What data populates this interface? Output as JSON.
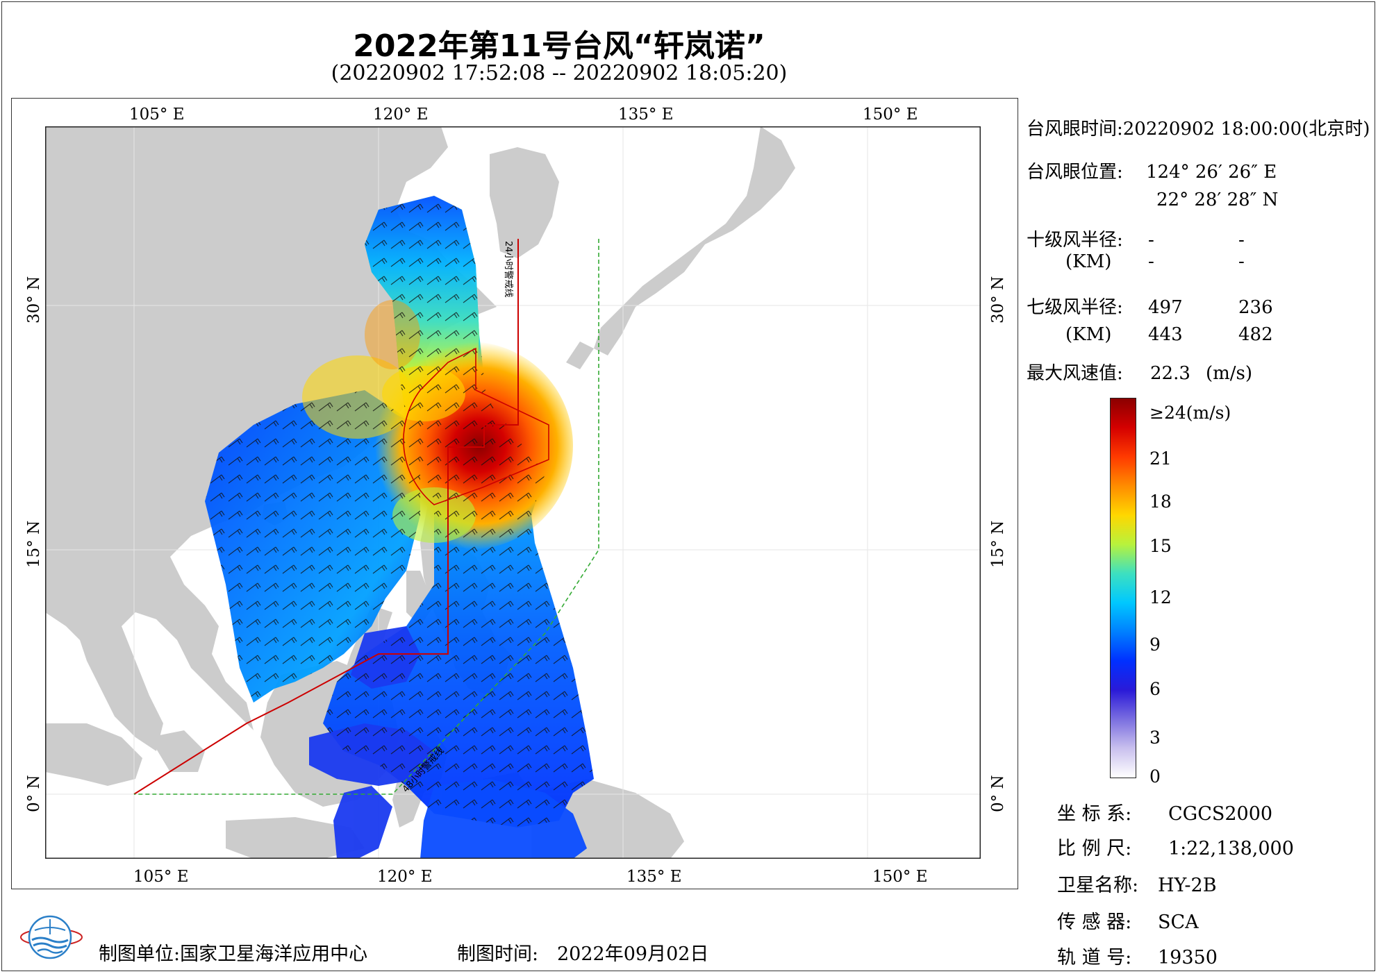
{
  "title": "2022年第11号台风“轩岚诺”",
  "subtitle": "(20220902 17:52:08 -- 20220902 18:05:20)",
  "axes": {
    "lon_ticks": [
      "105° E",
      "120° E",
      "135° E",
      "150° E"
    ],
    "lat_ticks": [
      "30° N",
      "15° N",
      "0° N"
    ]
  },
  "map_labels": {
    "warning_24h": "24小时警戒线",
    "warning_48h": "48小时警戒线"
  },
  "info": {
    "eye_time_label": "台风眼时间:",
    "eye_time_value": "20220902 18:00:00(北京时)",
    "eye_pos_label": "台风眼位置:",
    "eye_lon": "124° 26′ 26″ E",
    "eye_lat": "22° 28′ 28″ N",
    "r10_label": "十级风半径:",
    "r10_unit": "(KM)",
    "r10_values": [
      "-",
      "-",
      "-",
      "-"
    ],
    "r7_label": "七级风半径:",
    "r7_unit": "(KM)",
    "r7_values": [
      "497",
      "236",
      "443",
      "482"
    ],
    "max_wind_label": "最大风速值:",
    "max_wind_value": "22.3",
    "max_wind_unit": "(m/s)"
  },
  "colorbar": {
    "labels": [
      "≥24(m/s)",
      "21",
      "18",
      "15",
      "12",
      "9",
      "6",
      "3",
      "0"
    ],
    "stops": [
      "#8b0000",
      "#d40000",
      "#ff3a00",
      "#ff8c00",
      "#ffd700",
      "#b8f23c",
      "#3de0c0",
      "#00c8ff",
      "#0080ff",
      "#0030ff",
      "#2a1ad8",
      "#7a6ee0",
      "#c9c0ee",
      "#ffffff"
    ]
  },
  "meta": {
    "crs_label": "坐 标 系:",
    "crs_value": "CGCS2000",
    "scale_label": "比 例 尺:",
    "scale_value": "1:22,138,000",
    "satellite_label": "卫星名称:",
    "satellite_value": "HY-2B",
    "sensor_label": "传 感 器:",
    "sensor_value": "SCA",
    "orbit_label": "轨 道 号:",
    "orbit_value": "19350"
  },
  "footer": {
    "producer_label": "制图单位:",
    "producer_value": "国家卫星海洋应用中心",
    "date_label": "制图时间:",
    "date_value": "2022年09月02日"
  },
  "colors": {
    "land": "#cccccc",
    "sea": "#ffffff",
    "warning_24h": "#cc0000",
    "warning_48h": "#33aa33",
    "typhoon_core": "#d40000"
  }
}
